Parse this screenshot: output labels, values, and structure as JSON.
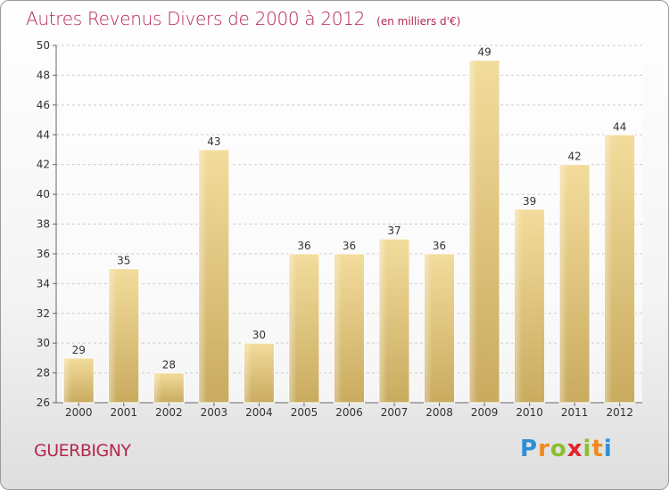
{
  "chart_data": {
    "type": "bar",
    "title": "Autres Revenus Divers de 2000 à 2012",
    "subtitle": "(en milliers d'€)",
    "categories": [
      "2000",
      "2001",
      "2002",
      "2003",
      "2004",
      "2005",
      "2006",
      "2007",
      "2008",
      "2009",
      "2010",
      "2011",
      "2012"
    ],
    "values": [
      29,
      35,
      28,
      43,
      30,
      36,
      36,
      37,
      36,
      49,
      39,
      42,
      44
    ],
    "ylim": [
      26,
      50
    ],
    "yticks": [
      26,
      28,
      30,
      32,
      34,
      36,
      38,
      40,
      42,
      44,
      46,
      48,
      50
    ],
    "grid": true,
    "data_labels": true,
    "bar_color": "#e2c47f"
  },
  "footer": {
    "commune": "GUERBIGNY",
    "logo_letters": [
      "P",
      "r",
      "o",
      "x",
      "i",
      "t",
      "i"
    ],
    "logo_colors": [
      "#2e8fd6",
      "#f08a1c",
      "#8bbf2e",
      "#e2232a",
      "#8bbf2e",
      "#f08a1c",
      "#2e8fd6"
    ]
  },
  "colors": {
    "title": "#b5274f",
    "axis_text": "#333333",
    "grid": "#cccccc"
  }
}
